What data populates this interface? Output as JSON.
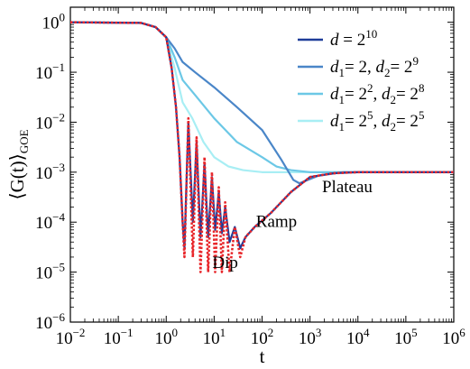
{
  "chart_data": {
    "type": "line",
    "title": "",
    "xlabel": "t",
    "ylabel_parts": [
      "⟨G(t)⟩",
      "GOE"
    ],
    "xscale": "log",
    "yscale": "log",
    "xlim": [
      0.01,
      1000000
    ],
    "ylim": [
      1e-06,
      2
    ],
    "grid": false,
    "legend_position": "top-right",
    "x_ticks": [
      {
        "value": 0.01,
        "base": "10",
        "exp": "−2"
      },
      {
        "value": 0.1,
        "base": "10",
        "exp": "−1"
      },
      {
        "value": 1,
        "base": "10",
        "exp": "0"
      },
      {
        "value": 10,
        "base": "10",
        "exp": "1"
      },
      {
        "value": 100,
        "base": "10",
        "exp": "2"
      },
      {
        "value": 1000,
        "base": "10",
        "exp": "3"
      },
      {
        "value": 10000,
        "base": "10",
        "exp": "4"
      },
      {
        "value": 100000,
        "base": "10",
        "exp": "5"
      },
      {
        "value": 1000000,
        "base": "10",
        "exp": "6"
      }
    ],
    "y_ticks": [
      {
        "value": 1,
        "base": "10",
        "exp": "0"
      },
      {
        "value": 0.1,
        "base": "10",
        "exp": "−1"
      },
      {
        "value": 0.01,
        "base": "10",
        "exp": "−2"
      },
      {
        "value": 0.001,
        "base": "10",
        "exp": "−3"
      },
      {
        "value": 0.0001,
        "base": "10",
        "exp": "−4"
      },
      {
        "value": 1e-05,
        "base": "10",
        "exp": "−5"
      },
      {
        "value": 1e-06,
        "base": "10",
        "exp": "−6"
      }
    ],
    "series": [
      {
        "legend_parts": [
          "d",
          " = 2",
          "10"
        ],
        "color": "#1f3d99",
        "style": "solid",
        "points": [
          [
            0.01,
            1
          ],
          [
            0.3,
            0.97
          ],
          [
            0.6,
            0.8
          ],
          [
            1.0,
            0.5
          ],
          [
            1.3,
            0.12
          ],
          [
            1.6,
            0.02
          ],
          [
            1.9,
            0.002
          ],
          [
            2.2,
            0.0001
          ],
          [
            2.4,
            3e-05
          ],
          [
            2.9,
            0.01
          ],
          [
            3.6,
            0.0001
          ],
          [
            4.3,
            0.004
          ],
          [
            5.2,
            5e-05
          ],
          [
            6.3,
            0.0015
          ],
          [
            7.5,
            5e-05
          ],
          [
            9,
            0.0008
          ],
          [
            10.5,
            7e-05
          ],
          [
            12.5,
            0.0004
          ],
          [
            14.5,
            6e-05
          ],
          [
            17,
            0.0002
          ],
          [
            21,
            4e-05
          ],
          [
            27,
            8e-05
          ],
          [
            35,
            3e-05
          ],
          [
            45,
            5e-05
          ],
          [
            70,
            8e-05
          ],
          [
            150,
            0.00015
          ],
          [
            400,
            0.0004
          ],
          [
            1000,
            0.0008
          ],
          [
            3000,
            0.00095
          ],
          [
            10000,
            0.001
          ],
          [
            1000000,
            0.001
          ]
        ]
      },
      {
        "legend_parts": [
          "d",
          "1",
          "= 2, ",
          "d",
          "2",
          "= 2",
          "9"
        ],
        "color": "#4a86c8",
        "style": "solid",
        "points": [
          [
            0.01,
            1
          ],
          [
            0.3,
            0.97
          ],
          [
            0.6,
            0.8
          ],
          [
            1.0,
            0.5
          ],
          [
            1.5,
            0.3
          ],
          [
            2.2,
            0.16
          ],
          [
            4,
            0.1
          ],
          [
            10,
            0.05
          ],
          [
            30,
            0.02
          ],
          [
            100,
            0.007
          ],
          [
            250,
            0.0018
          ],
          [
            450,
            0.0007
          ],
          [
            600,
            0.0006
          ],
          [
            900,
            0.0007
          ],
          [
            1500,
            0.00085
          ],
          [
            5000,
            0.001
          ],
          [
            1000000,
            0.001
          ]
        ]
      },
      {
        "legend_parts": [
          "d",
          "1",
          "= 2",
          "2",
          ", ",
          "d",
          "2",
          "= 2",
          "8"
        ],
        "color": "#6cc8e6",
        "style": "solid",
        "points": [
          [
            0.01,
            1
          ],
          [
            0.3,
            0.97
          ],
          [
            0.6,
            0.8
          ],
          [
            1.0,
            0.5
          ],
          [
            1.5,
            0.2
          ],
          [
            2.2,
            0.07
          ],
          [
            4,
            0.035
          ],
          [
            10,
            0.012
          ],
          [
            30,
            0.004
          ],
          [
            100,
            0.002
          ],
          [
            200,
            0.0013
          ],
          [
            400,
            0.0011
          ],
          [
            1000,
            0.001
          ],
          [
            1000000,
            0.001
          ]
        ]
      },
      {
        "legend_parts": [
          "d",
          "1",
          "= 2",
          "5",
          ", ",
          "d",
          "2",
          "= 2",
          "5"
        ],
        "color": "#a8eef4",
        "style": "solid",
        "points": [
          [
            0.01,
            1
          ],
          [
            0.3,
            0.97
          ],
          [
            0.6,
            0.8
          ],
          [
            1.0,
            0.5
          ],
          [
            1.5,
            0.12
          ],
          [
            2.2,
            0.025
          ],
          [
            3.5,
            0.012
          ],
          [
            6,
            0.004
          ],
          [
            10,
            0.002
          ],
          [
            20,
            0.0013
          ],
          [
            40,
            0.0011
          ],
          [
            100,
            0.001
          ],
          [
            1000000,
            0.001
          ]
        ]
      },
      {
        "legend_parts": [],
        "color": "#e8262a",
        "style": "dotted",
        "points": [
          [
            0.01,
            1
          ],
          [
            0.3,
            0.97
          ],
          [
            0.6,
            0.8
          ],
          [
            1.0,
            0.5
          ],
          [
            1.3,
            0.12
          ],
          [
            1.6,
            0.02
          ],
          [
            1.9,
            0.002
          ],
          [
            2.2,
            0.0001
          ],
          [
            2.4,
            2e-05
          ],
          [
            2.9,
            0.012
          ],
          [
            3.6,
            2e-05
          ],
          [
            4.3,
            0.005
          ],
          [
            5.2,
            1e-05
          ],
          [
            6.3,
            0.002
          ],
          [
            7.5,
            1e-05
          ],
          [
            9,
            0.001
          ],
          [
            10.5,
            1e-05
          ],
          [
            12.5,
            0.0005
          ],
          [
            14.5,
            1e-05
          ],
          [
            17,
            0.00025
          ],
          [
            21,
            1e-05
          ],
          [
            27,
            8e-05
          ],
          [
            35,
            2e-05
          ],
          [
            45,
            5e-05
          ],
          [
            70,
            8e-05
          ],
          [
            150,
            0.00015
          ],
          [
            400,
            0.0004
          ],
          [
            1000,
            0.0008
          ],
          [
            3000,
            0.00095
          ],
          [
            10000,
            0.001
          ],
          [
            1000000,
            0.001
          ]
        ]
      }
    ],
    "annotations": [
      {
        "text": "Plateau",
        "x": 6000,
        "y": 0.0004
      },
      {
        "text": "Ramp",
        "x": 200,
        "y": 8e-05
      },
      {
        "text": "Dip",
        "x": 17,
        "y": 1.2e-05
      }
    ]
  }
}
